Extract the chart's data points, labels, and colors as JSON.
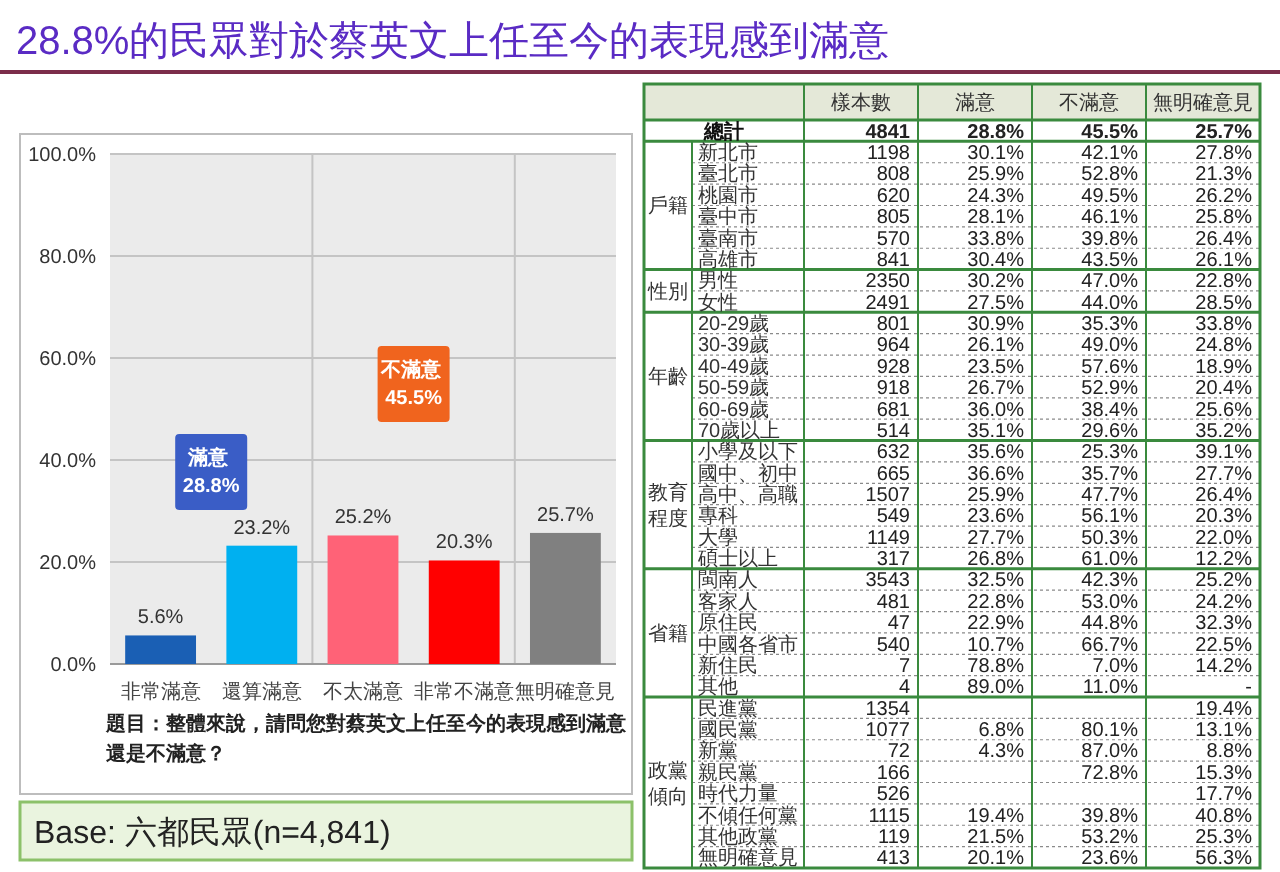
{
  "chart_data": [
    {
      "type": "bar",
      "title": "28.8%的民眾對於蔡英文上任至今的表現感到滿意",
      "categories": [
        "非常滿意",
        "還算滿意",
        "不太滿意",
        "非常不滿意",
        "無明確意見"
      ],
      "values": [
        5.6,
        23.2,
        25.2,
        20.3,
        25.7
      ],
      "colors": [
        "#1a5fb4",
        "#00b0f0",
        "#ff6277",
        "#ff0000",
        "#808080"
      ],
      "value_labels": [
        "5.6%",
        "23.2%",
        "25.2%",
        "20.3%",
        "25.7%"
      ],
      "ylim": [
        0,
        100
      ],
      "yticks": [
        {
          "value": 0,
          "label": "0.0%"
        },
        {
          "value": 20,
          "label": "20.0%"
        },
        {
          "value": 40,
          "label": "40.0%"
        },
        {
          "value": 60,
          "label": "60.0%"
        },
        {
          "value": 80,
          "label": "80.0%"
        },
        {
          "value": 100,
          "label": "100.0%"
        }
      ],
      "grid": true,
      "annotations": [
        "題目：整體來說，請問您對蔡英文上任至今的表現感到滿意還是不滿意？",
        "滿意 28.8%",
        "不滿意 45.5%",
        "Base: 六都民眾(n=4,841)"
      ]
    },
    {
      "type": "other",
      "categories": [
        "樣本數",
        "滿意",
        "不滿意",
        "無明確意見"
      ],
      "y_categories": [
        "總計",
        "新北市",
        "臺北市",
        "桃園市",
        "臺中市",
        "臺南市",
        "高雄市",
        "男性",
        "女性",
        "20-29歲",
        "30-39歲",
        "40-49歲",
        "50-59歲",
        "60-69歲",
        "70歲以上",
        "小學及以下",
        "國中、初中",
        "高中、高職",
        "專科",
        "大學",
        "碩士以上",
        "閩南人",
        "客家人",
        "原住民",
        "中國各省市",
        "新住民",
        "其他",
        "民進黨",
        "國民黨",
        "新黨",
        "親民黨",
        "時代力量",
        "不傾任何黨",
        "其他政黨",
        "無明確意見"
      ],
      "y2_categories": [
        null,
        "戶籍",
        null,
        null,
        null,
        null,
        null,
        "性別",
        null,
        "年齡",
        null,
        null,
        null,
        null,
        null,
        "教育程度",
        null,
        null,
        null,
        null,
        null,
        "省籍",
        null,
        null,
        null,
        null,
        null,
        "政黨傾向",
        null,
        null,
        null,
        null,
        null,
        null,
        null
      ],
      "cells": [
        [
          "4841",
          "28.8%",
          "45.5%",
          "25.7%"
        ],
        [
          "1198",
          "30.1%",
          "42.1%",
          "27.8%"
        ],
        [
          "808",
          "25.9%",
          "52.8%",
          "21.3%"
        ],
        [
          "620",
          "24.3%",
          "49.5%",
          "26.2%"
        ],
        [
          "805",
          "28.1%",
          "46.1%",
          "25.8%"
        ],
        [
          "570",
          "33.8%",
          "39.8%",
          "26.4%"
        ],
        [
          "841",
          "30.4%",
          "43.5%",
          "26.1%"
        ],
        [
          "2350",
          "30.2%",
          "47.0%",
          "22.8%"
        ],
        [
          "2491",
          "27.5%",
          "44.0%",
          "28.5%"
        ],
        [
          "801",
          "30.9%",
          "35.3%",
          "33.8%"
        ],
        [
          "964",
          "26.1%",
          "49.0%",
          "24.8%"
        ],
        [
          "928",
          "23.5%",
          "57.6%",
          "18.9%"
        ],
        [
          "918",
          "26.7%",
          "52.9%",
          "20.4%"
        ],
        [
          "681",
          "36.0%",
          "38.4%",
          "25.6%"
        ],
        [
          "514",
          "35.1%",
          "29.6%",
          "35.2%"
        ],
        [
          "632",
          "35.6%",
          "25.3%",
          "39.1%"
        ],
        [
          "665",
          "36.6%",
          "35.7%",
          "27.7%"
        ],
        [
          "1507",
          "25.9%",
          "47.7%",
          "26.4%"
        ],
        [
          "549",
          "23.6%",
          "56.1%",
          "20.3%"
        ],
        [
          "1149",
          "27.7%",
          "50.3%",
          "22.0%"
        ],
        [
          "317",
          "26.8%",
          "61.0%",
          "12.2%"
        ],
        [
          "3543",
          "32.5%",
          "42.3%",
          "25.2%"
        ],
        [
          "481",
          "22.8%",
          "53.0%",
          "24.2%"
        ],
        [
          "47",
          "22.9%",
          "44.8%",
          "32.3%"
        ],
        [
          "540",
          "10.7%",
          "66.7%",
          "22.5%"
        ],
        [
          "7",
          "78.8%",
          "7.0%",
          "14.2%"
        ],
        [
          "4",
          "89.0%",
          "11.0%",
          "-"
        ],
        [
          "1354",
          null,
          null,
          "19.4%"
        ],
        [
          "1077",
          "6.8%",
          "80.1%",
          "13.1%"
        ],
        [
          "72",
          "4.3%",
          "87.0%",
          "8.8%"
        ],
        [
          "166",
          null,
          "72.8%",
          "15.3%"
        ],
        [
          "526",
          null,
          null,
          "17.7%"
        ],
        [
          "1115",
          "19.4%",
          "39.8%",
          "40.8%"
        ],
        [
          "119",
          "21.5%",
          "53.2%",
          "25.3%"
        ],
        [
          "413",
          "20.1%",
          "23.6%",
          "56.3%"
        ]
      ]
    }
  ]
}
